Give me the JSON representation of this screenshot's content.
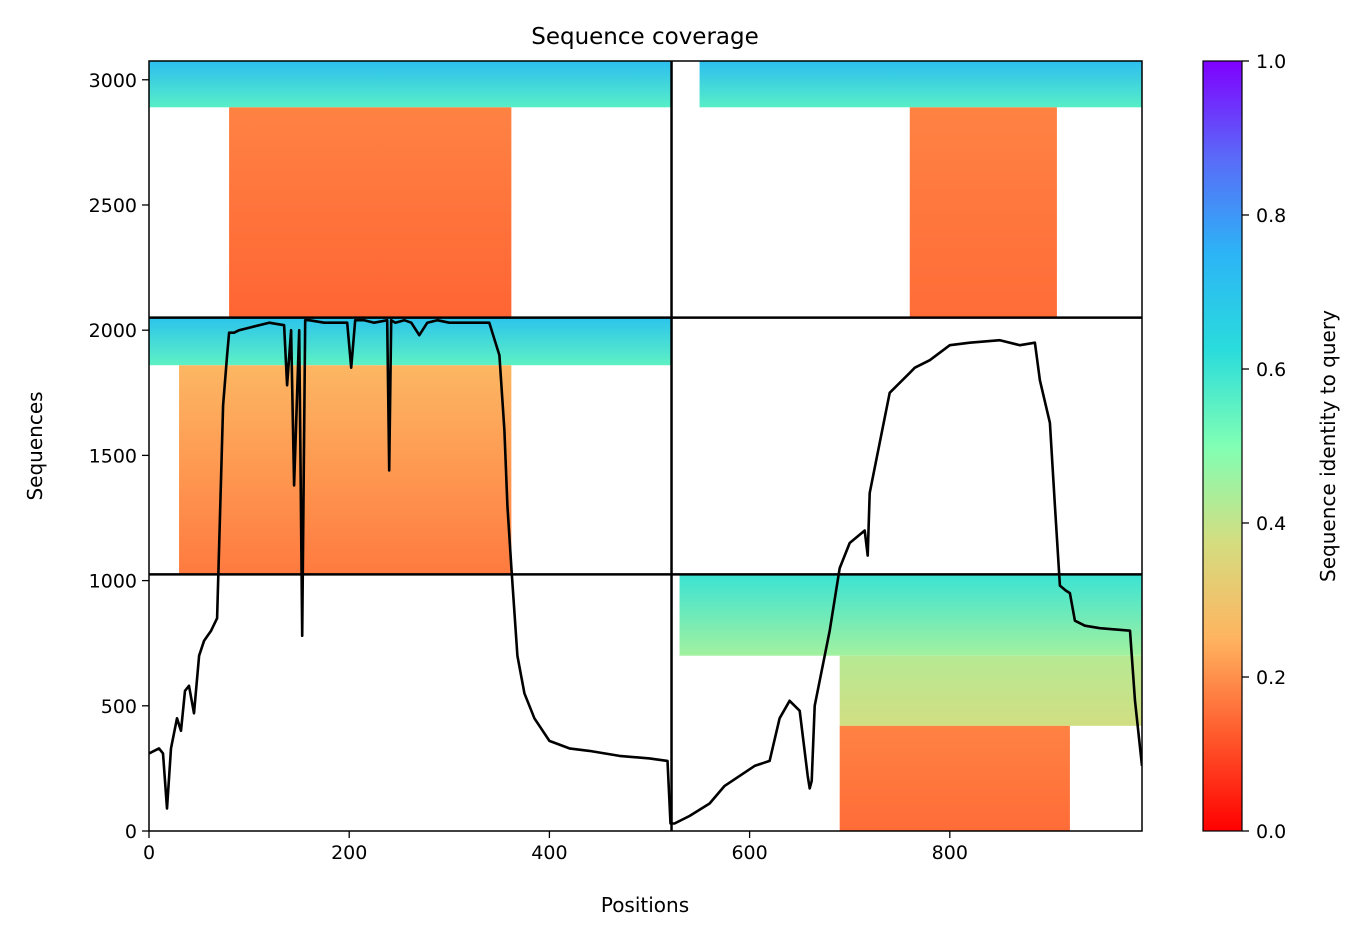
{
  "chart_data": {
    "type": "heatmap",
    "title": "Sequence coverage",
    "xlabel": "Positions",
    "ylabel": "Sequences",
    "xlim": [
      0,
      992
    ],
    "ylim": [
      0,
      3075
    ],
    "x_ticks": [
      0,
      200,
      400,
      600,
      800
    ],
    "y_ticks": [
      0,
      500,
      1000,
      1500,
      2000,
      2500,
      3000
    ],
    "chain_boundary_x": 522,
    "block_boundaries_y": [
      1025,
      2050
    ],
    "colorbar": {
      "label": "Sequence identity to query",
      "colormap": "rainbow_r",
      "range": [
        0,
        1
      ],
      "ticks": [
        "0.0",
        "0.2",
        "0.4",
        "0.6",
        "0.8",
        "1.0"
      ]
    },
    "blocks": [
      {
        "x_range": [
          0,
          522
        ],
        "y_range": [
          2050,
          3075
        ],
        "bands": [
          {
            "y0": 2890,
            "y1": 3075,
            "x0": 0,
            "x1": 522,
            "id_low": 0.56,
            "id_high": 0.72
          },
          {
            "y0": 2050,
            "y1": 2890,
            "x0": 80,
            "x1": 362,
            "id_low": 0.14,
            "id_high": 0.18
          }
        ]
      },
      {
        "x_range": [
          522,
          992
        ],
        "y_range": [
          2050,
          3075
        ],
        "bands": [
          {
            "y0": 2890,
            "y1": 3075,
            "x0": 550,
            "x1": 992,
            "id_low": 0.56,
            "id_high": 0.72
          },
          {
            "y0": 2050,
            "y1": 2890,
            "x0": 760,
            "x1": 907,
            "id_low": 0.15,
            "id_high": 0.18
          }
        ]
      },
      {
        "x_range": [
          0,
          522
        ],
        "y_range": [
          1025,
          2050
        ],
        "bands": [
          {
            "y0": 1860,
            "y1": 2050,
            "x0": 0,
            "x1": 522,
            "id_low": 0.55,
            "id_high": 0.7
          },
          {
            "y0": 1025,
            "y1": 1860,
            "x0": 30,
            "x1": 362,
            "id_low": 0.17,
            "id_high": 0.26
          }
        ]
      },
      {
        "x_range": [
          522,
          992
        ],
        "y_range": [
          0,
          1025
        ],
        "bands": [
          {
            "y0": 700,
            "y1": 1025,
            "x0": 530,
            "x1": 992,
            "id_low": 0.45,
            "id_high": 0.6
          },
          {
            "y0": 420,
            "y1": 700,
            "x0": 690,
            "x1": 992,
            "id_low": 0.38,
            "id_high": 0.42
          },
          {
            "y0": 0,
            "y1": 420,
            "x0": 690,
            "x1": 920,
            "id_low": 0.15,
            "id_high": 0.18
          }
        ]
      }
    ],
    "coverage_line": {
      "x": [
        0,
        10,
        14,
        18,
        22,
        28,
        32,
        36,
        40,
        45,
        50,
        55,
        62,
        68,
        74,
        78,
        80,
        85,
        90,
        100,
        110,
        120,
        135,
        138,
        142,
        145,
        150,
        153,
        156,
        160,
        175,
        185,
        198,
        202,
        206,
        215,
        225,
        238,
        240,
        242,
        246,
        255,
        262,
        270,
        278,
        288,
        300,
        340,
        350,
        355,
        358,
        362,
        368,
        375,
        385,
        400,
        420,
        440,
        470,
        500,
        518,
        521,
        523,
        525,
        540,
        560,
        575,
        590,
        605,
        620,
        630,
        640,
        650,
        658,
        660,
        662,
        665,
        680,
        690,
        700,
        715,
        718,
        720,
        725,
        740,
        760,
        765,
        780,
        800,
        820,
        850,
        870,
        885,
        890,
        900,
        905,
        910,
        916,
        920,
        925,
        935,
        950,
        980,
        985,
        992
      ],
      "y": [
        310,
        330,
        310,
        90,
        330,
        450,
        400,
        560,
        580,
        470,
        700,
        760,
        800,
        850,
        1700,
        1900,
        1990,
        1990,
        2000,
        2010,
        2020,
        2030,
        2020,
        1780,
        2000,
        1380,
        2000,
        780,
        2040,
        2040,
        2030,
        2030,
        2030,
        1850,
        2040,
        2040,
        2030,
        2040,
        1440,
        2040,
        2030,
        2040,
        2030,
        1980,
        2030,
        2040,
        2030,
        2030,
        1900,
        1600,
        1300,
        1050,
        700,
        550,
        450,
        360,
        330,
        320,
        300,
        290,
        280,
        30,
        30,
        30,
        60,
        110,
        180,
        220,
        260,
        280,
        450,
        520,
        480,
        220,
        170,
        200,
        500,
        800,
        1050,
        1150,
        1200,
        1100,
        1350,
        1450,
        1750,
        1830,
        1850,
        1880,
        1940,
        1950,
        1960,
        1940,
        1950,
        1800,
        1630,
        1300,
        980,
        960,
        950,
        840,
        820,
        810,
        800,
        520,
        260
      ]
    }
  }
}
